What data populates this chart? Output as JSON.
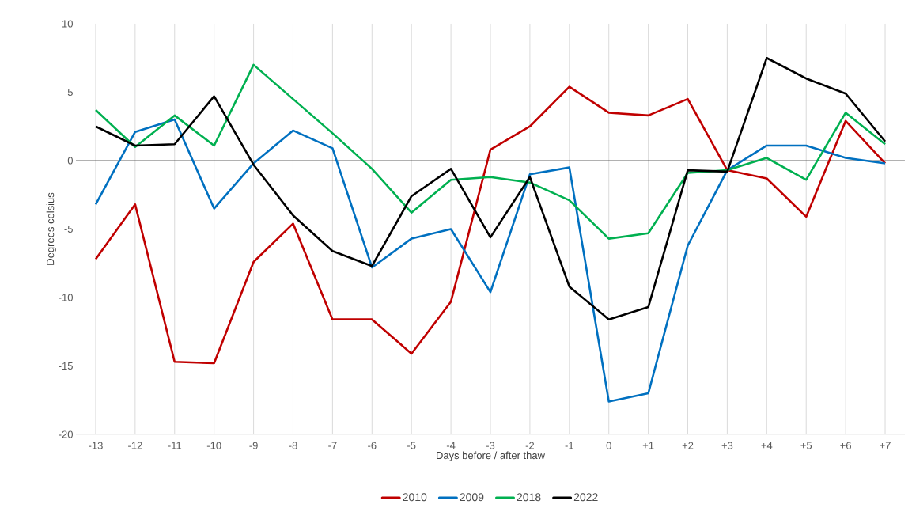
{
  "chart_data": {
    "type": "line",
    "xlabel": "Days before / after thaw",
    "ylabel": "Degrees celsius",
    "categories": [
      "-13",
      "-12",
      "-11",
      "-10",
      "-9",
      "-8",
      "-7",
      "-6",
      "-5",
      "-4",
      "-3",
      "-2",
      "-1",
      "0",
      "+1",
      "+2",
      "+3",
      "+4",
      "+5",
      "+6",
      "+7"
    ],
    "series": [
      {
        "name": "2010",
        "color": "#c00000",
        "values": [
          -7.2,
          -3.2,
          -14.7,
          -14.8,
          -7.4,
          -4.6,
          -11.6,
          -11.6,
          -14.1,
          -10.3,
          0.8,
          2.5,
          5.4,
          3.5,
          3.3,
          4.5,
          -0.7,
          -1.3,
          -4.1,
          2.9,
          -0.2
        ]
      },
      {
        "name": "2009",
        "color": "#0070c0",
        "values": [
          -3.2,
          2.1,
          3.0,
          -3.5,
          -0.2,
          2.2,
          0.9,
          -7.8,
          -5.7,
          -5.0,
          -9.6,
          -1.0,
          -0.5,
          -17.6,
          -17.0,
          -6.2,
          -0.7,
          1.1,
          1.1,
          0.2,
          -0.2
        ]
      },
      {
        "name": "2018",
        "color": "#00b050",
        "values": [
          3.7,
          1.0,
          3.3,
          1.1,
          7.0,
          4.5,
          2.0,
          -0.6,
          -3.8,
          -1.4,
          -1.2,
          -1.6,
          -2.9,
          -5.7,
          -5.3,
          -0.9,
          -0.7,
          0.2,
          -1.4,
          3.5,
          1.2
        ]
      },
      {
        "name": "2022",
        "color": "#000000",
        "values": [
          2.5,
          1.1,
          1.2,
          4.7,
          -0.3,
          -4.0,
          -6.6,
          -7.7,
          -2.6,
          -0.6,
          -5.6,
          -1.2,
          -9.2,
          -11.6,
          -10.7,
          -0.7,
          -0.8,
          7.5,
          6.0,
          4.9,
          1.4
        ]
      }
    ],
    "ylim": [
      -20,
      10
    ],
    "yticks": [
      -20,
      -15,
      -10,
      -5,
      0,
      5,
      10
    ],
    "ref_lines": [
      {
        "axis": "y",
        "value": 0,
        "color": "#404040"
      }
    ],
    "grid": "x",
    "legend": "bottom",
    "marker": "none",
    "line_style": "solid"
  }
}
